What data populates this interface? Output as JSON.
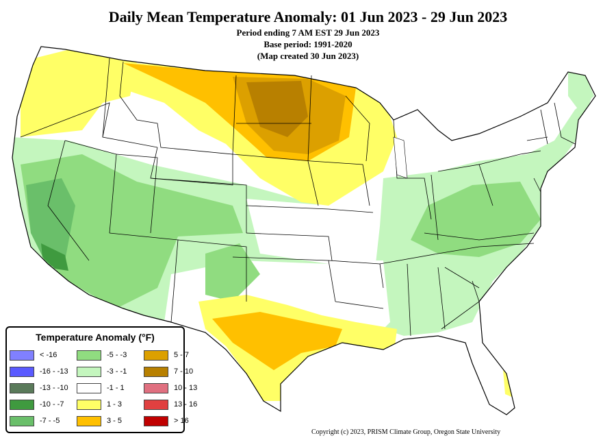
{
  "header": {
    "title": "Daily Mean Temperature Anomaly: 01 Jun 2023 - 29 Jun 2023",
    "period": "Period ending 7 AM EST 29 Jun 2023",
    "base": "Base period: 1991-2020",
    "created": "(Map created 30 Jun 2023)"
  },
  "legend": {
    "title": "Temperature Anomaly (°F)",
    "items": [
      {
        "label": "< -16",
        "color": "#8080ff"
      },
      {
        "label": "-16 - -13",
        "color": "#5a5aff"
      },
      {
        "label": "-13 - -10",
        "color": "#5a7a5a"
      },
      {
        "label": "-10 - -7",
        "color": "#3f9a3f"
      },
      {
        "label": "-7 - -5",
        "color": "#6abf6a"
      },
      {
        "label": "-5 - -3",
        "color": "#90dc80"
      },
      {
        "label": "-3 - -1",
        "color": "#c4f6be"
      },
      {
        "label": "-1 - 1",
        "color": "#ffffff"
      },
      {
        "label": "1 - 3",
        "color": "#ffff66"
      },
      {
        "label": "3 - 5",
        "color": "#ffc000"
      },
      {
        "label": "5 - 7",
        "color": "#dca000"
      },
      {
        "label": "7 - 10",
        "color": "#b88000"
      },
      {
        "label": "10 - 13",
        "color": "#e07080"
      },
      {
        "label": "13 - 16",
        "color": "#e04040"
      },
      {
        "label": "> 16",
        "color": "#c00000"
      }
    ]
  },
  "copyright": "Copyright (c) 2023, PRISM Climate Group, Oregon State University"
}
